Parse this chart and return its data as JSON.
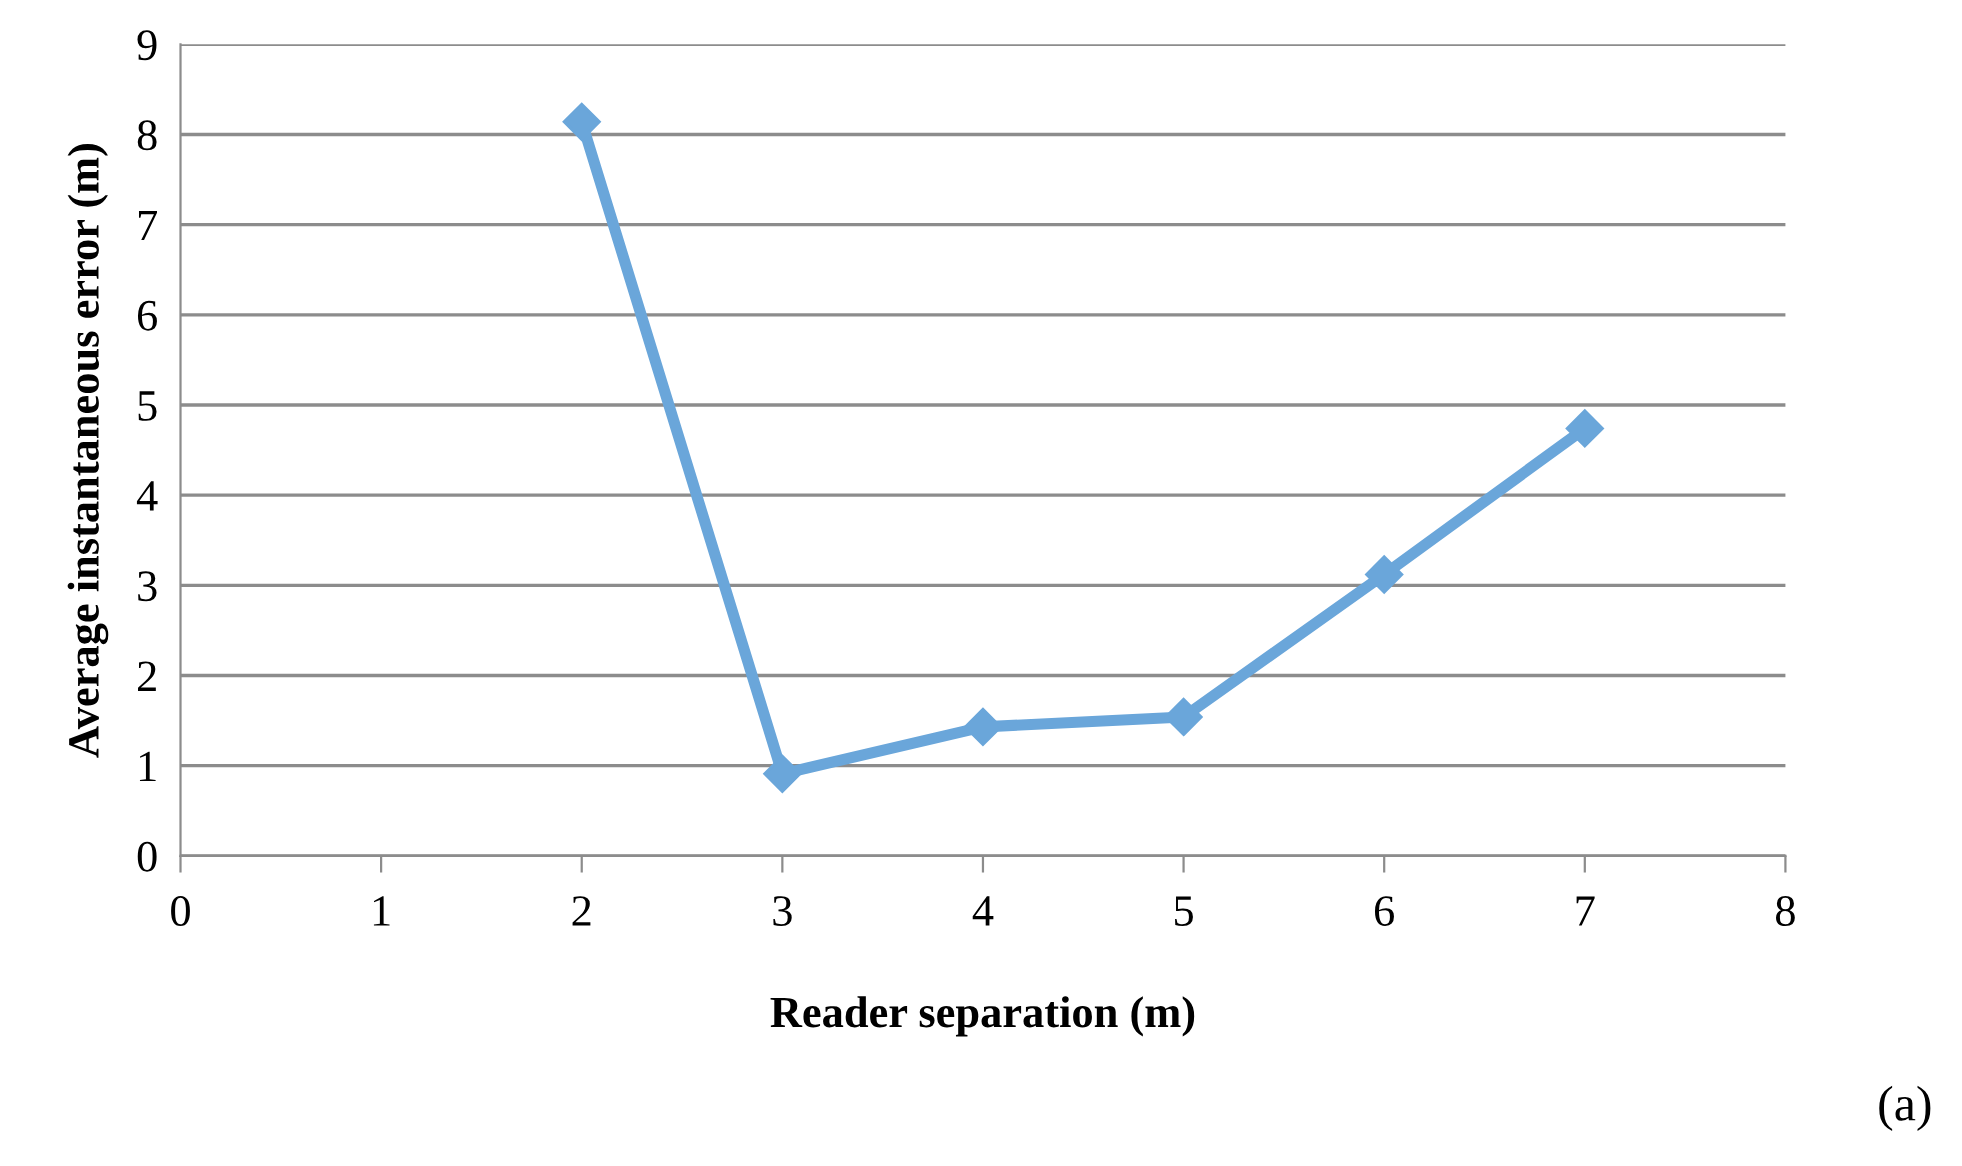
{
  "chart_data": {
    "type": "line",
    "xlabel": "Reader separation (m)",
    "ylabel": "Average instantaneous error (m)",
    "x": [
      2,
      3,
      4,
      5,
      6,
      7
    ],
    "series": [
      {
        "color": "#6aa6da",
        "values": [
          8.14,
          0.91,
          1.43,
          1.54,
          3.12,
          4.74
        ]
      }
    ],
    "xlim": [
      0,
      8
    ],
    "xticks": [
      0,
      1,
      2,
      3,
      4,
      5,
      6,
      7,
      8
    ],
    "ylim": [
      0,
      9
    ],
    "yticks": [
      0,
      1,
      2,
      3,
      4,
      5,
      6,
      7,
      8,
      9
    ],
    "grid": "y",
    "marker": "diamond",
    "line_style": "solid",
    "annotations": [
      "(a)"
    ]
  }
}
